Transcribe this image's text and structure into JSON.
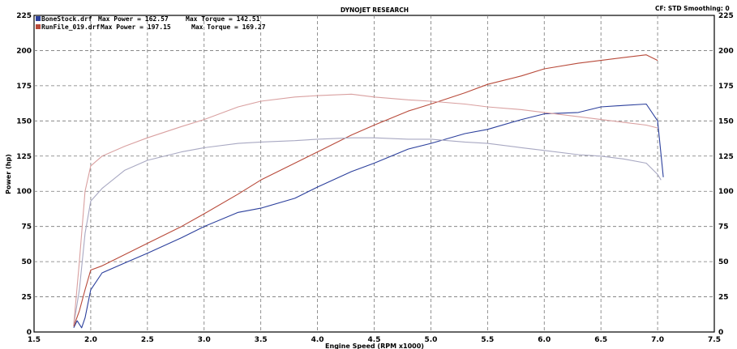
{
  "header": {
    "title": "DYNOJET RESEARCH",
    "right": "CF: STD  Smoothing: 0"
  },
  "legend": [
    {
      "file": "BoneStock.drf",
      "power_label": "Max Power = 162.57",
      "torque_label": "Max Torque = 142.51",
      "color": "#2b3f9c"
    },
    {
      "file": "RunFile_019.drf",
      "power_label": "Max Power = 197.15",
      "torque_label": "Max Torque = 169.27",
      "color": "#b84a3a"
    }
  ],
  "chart_data": {
    "type": "line",
    "xlabel": "Engine Speed (RPM x1000)",
    "ylabel": "Power (hp)",
    "xlim": [
      1.5,
      7.5
    ],
    "ylim": [
      0,
      225
    ],
    "x_ticks": [
      "1.5",
      "2.0",
      "2.5",
      "3.0",
      "3.5",
      "4.0",
      "4.5",
      "5.0",
      "5.5",
      "6.0",
      "6.5",
      "7.0",
      "7.5"
    ],
    "y_ticks": [
      "0",
      "25",
      "50",
      "75",
      "100",
      "125",
      "150",
      "175",
      "200",
      "225"
    ],
    "grid": true,
    "series": [
      {
        "name": "BoneStock.drf",
        "measure": "power",
        "color": "#2b3f9c",
        "x": [
          1.85,
          1.88,
          1.92,
          1.95,
          2.0,
          2.1,
          2.3,
          2.5,
          2.8,
          3.0,
          3.3,
          3.5,
          3.8,
          4.0,
          4.3,
          4.5,
          4.8,
          5.0,
          5.3,
          5.5,
          5.8,
          6.0,
          6.3,
          6.5,
          6.7,
          6.9,
          7.0,
          7.05
        ],
        "y": [
          3,
          8,
          3,
          10,
          30,
          42,
          49,
          56,
          67,
          75,
          85,
          88,
          95,
          103,
          114,
          120,
          130,
          134,
          141,
          144,
          151,
          155,
          156,
          160,
          161,
          162,
          150,
          110
        ]
      },
      {
        "name": "RunFile_019.drf",
        "measure": "power",
        "color": "#b84a3a",
        "x": [
          1.85,
          1.9,
          1.95,
          2.0,
          2.1,
          2.3,
          2.5,
          2.8,
          3.0,
          3.3,
          3.5,
          3.8,
          4.0,
          4.3,
          4.5,
          4.8,
          5.0,
          5.3,
          5.5,
          5.8,
          6.0,
          6.3,
          6.5,
          6.7,
          6.9,
          7.0
        ],
        "y": [
          4,
          15,
          30,
          44,
          47,
          55,
          63,
          75,
          84,
          98,
          108,
          120,
          128,
          140,
          147,
          157,
          162,
          170,
          176,
          182,
          187,
          191,
          193,
          195,
          197,
          193
        ]
      },
      {
        "name": "BoneStock.drf",
        "measure": "torque",
        "color": "#a8a8c2",
        "x": [
          1.85,
          1.9,
          1.95,
          2.0,
          2.1,
          2.3,
          2.5,
          2.8,
          3.0,
          3.3,
          3.5,
          3.8,
          4.0,
          4.3,
          4.5,
          4.8,
          5.0,
          5.3,
          5.5,
          5.8,
          6.0,
          6.3,
          6.5,
          6.7,
          6.9,
          7.0,
          7.03
        ],
        "y": [
          5,
          30,
          70,
          93,
          102,
          115,
          122,
          128,
          131,
          134,
          135,
          136,
          137,
          138,
          138,
          137,
          137,
          135,
          134,
          131,
          129,
          126,
          125,
          123,
          120,
          112,
          108
        ]
      },
      {
        "name": "RunFile_019.drf",
        "measure": "torque",
        "color": "#d9a0a0",
        "x": [
          1.85,
          1.9,
          1.95,
          2.0,
          2.1,
          2.3,
          2.5,
          2.8,
          3.0,
          3.3,
          3.5,
          3.8,
          4.0,
          4.3,
          4.5,
          4.8,
          5.0,
          5.3,
          5.5,
          5.8,
          6.0,
          6.3,
          6.5,
          6.7,
          6.9,
          7.0
        ],
        "y": [
          5,
          50,
          100,
          118,
          125,
          132,
          138,
          146,
          151,
          160,
          164,
          167,
          168,
          169,
          167,
          165,
          164,
          162,
          160,
          158,
          156,
          153,
          151,
          149,
          147,
          145
        ]
      }
    ]
  }
}
